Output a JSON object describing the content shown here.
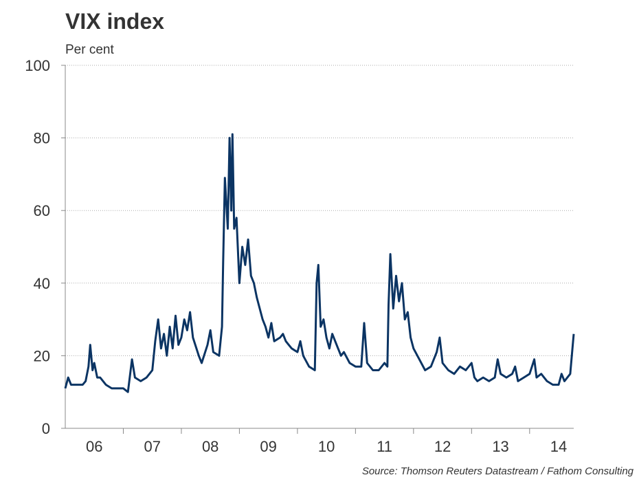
{
  "chart_data": {
    "type": "line",
    "title": "VIX index",
    "subtitle": "Per cent",
    "source": "Source: Thomson Reuters Datastream / Fathom Consulting",
    "xlim": [
      2006,
      2014.76
    ],
    "xticks": [
      {
        "value": 2006.5,
        "label": "06"
      },
      {
        "value": 2007.5,
        "label": "07"
      },
      {
        "value": 2008.5,
        "label": "08"
      },
      {
        "value": 2009.5,
        "label": "09"
      },
      {
        "value": 2010.5,
        "label": "10"
      },
      {
        "value": 2011.5,
        "label": "11"
      },
      {
        "value": 2012.5,
        "label": "12"
      },
      {
        "value": 2013.5,
        "label": "13"
      },
      {
        "value": 2014.5,
        "label": "14"
      }
    ],
    "xtick_marks": [
      2007,
      2008,
      2009,
      2010,
      2011,
      2012,
      2013,
      2014
    ],
    "ylim": [
      0,
      100
    ],
    "yticks": [
      0,
      20,
      40,
      60,
      80,
      100
    ],
    "grid": true,
    "series": [
      {
        "color": "#0b3463",
        "x": [
          2006.0,
          2006.05,
          2006.1,
          2006.2,
          2006.3,
          2006.35,
          2006.4,
          2006.43,
          2006.47,
          2006.5,
          2006.55,
          2006.6,
          2006.7,
          2006.8,
          2006.9,
          2007.0,
          2007.08,
          2007.15,
          2007.2,
          2007.3,
          2007.4,
          2007.45,
          2007.5,
          2007.55,
          2007.6,
          2007.65,
          2007.7,
          2007.75,
          2007.8,
          2007.85,
          2007.9,
          2007.95,
          2008.0,
          2008.05,
          2008.1,
          2008.15,
          2008.2,
          2008.3,
          2008.35,
          2008.45,
          2008.5,
          2008.55,
          2008.65,
          2008.7,
          2008.72,
          2008.75,
          2008.8,
          2008.83,
          2008.86,
          2008.88,
          2008.91,
          2008.95,
          2009.0,
          2009.05,
          2009.1,
          2009.15,
          2009.2,
          2009.25,
          2009.3,
          2009.4,
          2009.45,
          2009.5,
          2009.55,
          2009.6,
          2009.7,
          2009.75,
          2009.8,
          2009.85,
          2009.9,
          2010.0,
          2010.05,
          2010.1,
          2010.2,
          2010.3,
          2010.33,
          2010.36,
          2010.4,
          2010.45,
          2010.5,
          2010.55,
          2010.6,
          2010.7,
          2010.75,
          2010.8,
          2010.9,
          2011.0,
          2011.1,
          2011.15,
          2011.2,
          2011.3,
          2011.4,
          2011.5,
          2011.55,
          2011.57,
          2011.6,
          2011.65,
          2011.7,
          2011.75,
          2011.8,
          2011.85,
          2011.9,
          2011.95,
          2012.0,
          2012.1,
          2012.2,
          2012.3,
          2012.4,
          2012.45,
          2012.5,
          2012.6,
          2012.7,
          2012.8,
          2012.9,
          2013.0,
          2013.05,
          2013.1,
          2013.2,
          2013.3,
          2013.4,
          2013.45,
          2013.5,
          2013.6,
          2013.7,
          2013.75,
          2013.8,
          2013.9,
          2014.0,
          2014.08,
          2014.12,
          2014.2,
          2014.3,
          2014.4,
          2014.5,
          2014.55,
          2014.6,
          2014.7,
          2014.76
        ],
        "values": [
          11,
          14,
          12,
          12,
          12,
          13,
          17,
          23,
          16,
          18,
          14,
          14,
          12,
          11,
          11,
          11,
          10,
          19,
          14,
          13,
          14,
          15,
          16,
          24,
          30,
          22,
          26,
          20,
          28,
          22,
          31,
          23,
          25,
          30,
          27,
          32,
          25,
          20,
          18,
          23,
          27,
          21,
          20,
          28,
          46,
          69,
          55,
          80,
          60,
          81,
          55,
          58,
          40,
          50,
          45,
          52,
          42,
          40,
          36,
          30,
          28,
          25,
          29,
          24,
          25,
          26,
          24,
          23,
          22,
          21,
          24,
          20,
          17,
          16,
          40,
          45,
          28,
          30,
          25,
          22,
          26,
          22,
          20,
          21,
          18,
          17,
          17,
          29,
          18,
          16,
          16,
          18,
          17,
          34,
          48,
          33,
          42,
          35,
          40,
          30,
          32,
          25,
          22,
          19,
          16,
          17,
          21,
          25,
          18,
          16,
          15,
          17,
          16,
          18,
          14,
          13,
          14,
          13,
          14,
          19,
          15,
          14,
          15,
          17,
          13,
          14,
          15,
          19,
          14,
          15,
          13,
          12,
          12,
          15,
          13,
          15,
          26
        ]
      }
    ]
  }
}
